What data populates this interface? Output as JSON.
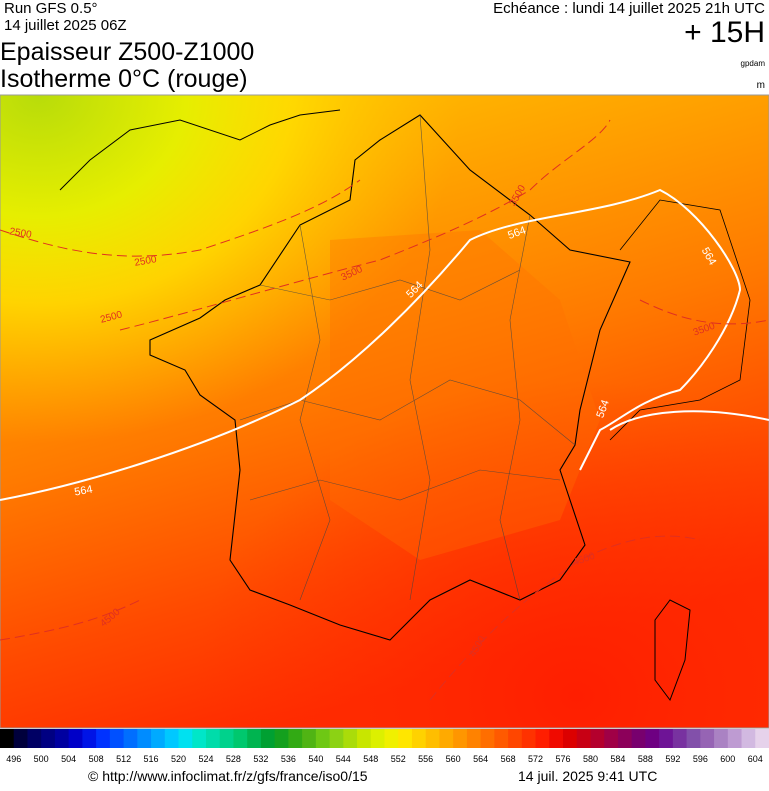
{
  "header": {
    "run": "Run GFS 0.5°",
    "run_date": "14 juillet 2025 06Z",
    "valid": "Echéance : lundi 14 juillet 2025 21h UTC",
    "lead": "+ 15H",
    "title_line1": "Epaisseur Z500-Z1000",
    "title_line2": "Isotherme 0°C (rouge)",
    "unit_thickness": "gpdam",
    "unit_iso0": "m"
  },
  "contour_labels": {
    "thickness": [
      "564",
      "564",
      "564",
      "564",
      "564"
    ],
    "iso0": [
      "2500",
      "2500",
      "2500",
      "3500",
      "3500",
      "3500",
      "4500",
      "4500",
      "4500"
    ]
  },
  "legend": {
    "labels": [
      496,
      500,
      504,
      508,
      512,
      516,
      520,
      524,
      528,
      532,
      536,
      540,
      544,
      548,
      552,
      556,
      560,
      564,
      568,
      572,
      576,
      580,
      584,
      588,
      592,
      596,
      600,
      604
    ],
    "colors": [
      "#000000",
      "#00003c",
      "#000064",
      "#000082",
      "#0000a0",
      "#0000c8",
      "#0014e6",
      "#0032ff",
      "#0050ff",
      "#006eff",
      "#008cff",
      "#00aaff",
      "#00c8ff",
      "#00e1f0",
      "#00e6c8",
      "#00dcaa",
      "#00d28c",
      "#00c86e",
      "#00b450",
      "#00a032",
      "#14a01e",
      "#32aa14",
      "#50b414",
      "#6ec814",
      "#8cd214",
      "#aadc0a",
      "#c8e600",
      "#dcf000",
      "#f0f000",
      "#ffe600",
      "#ffd200",
      "#ffbe00",
      "#ffaa00",
      "#ff9600",
      "#ff8200",
      "#ff6e00",
      "#ff5a00",
      "#ff4600",
      "#ff3200",
      "#ff1e00",
      "#f00a00",
      "#dc0000",
      "#c80014",
      "#b4002d",
      "#a00046",
      "#8c005a",
      "#78006e",
      "#6e0082",
      "#6e1496",
      "#7832a0",
      "#8250aa",
      "#9664b4",
      "#aa82c3",
      "#be9bd2",
      "#d2b9e1",
      "#e6d2eb"
    ]
  },
  "footer": {
    "source": "© http://www.infoclimat.fr/z/gfs/france/iso0/15",
    "generated": "14 juil. 2025  9:41 UTC"
  }
}
